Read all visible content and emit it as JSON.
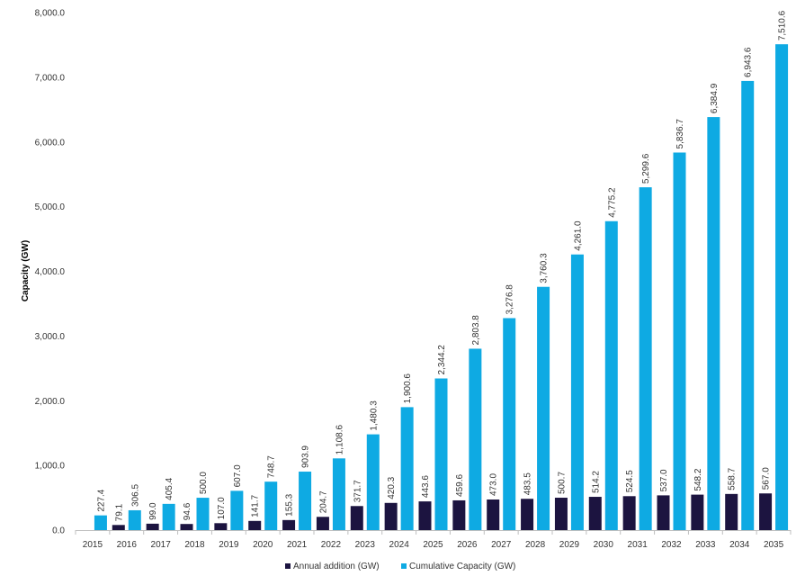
{
  "chart_data": {
    "type": "bar",
    "title": "",
    "xlabel": "",
    "ylabel": "Capacity (GW)",
    "ylim": [
      0,
      8000
    ],
    "yticks": [
      0,
      1000,
      2000,
      3000,
      4000,
      5000,
      6000,
      7000,
      8000
    ],
    "ytick_labels": [
      "0.0",
      "1,000.0",
      "2,000.0",
      "3,000.0",
      "4,000.0",
      "5,000.0",
      "6,000.0",
      "7,000.0",
      "8,000.0"
    ],
    "grid": false,
    "legend_position": "bottom",
    "categories": [
      "2015",
      "2016",
      "2017",
      "2018",
      "2019",
      "2020",
      "2021",
      "2022",
      "2023",
      "2024",
      "2025",
      "2026",
      "2027",
      "2028",
      "2029",
      "2030",
      "2031",
      "2032",
      "2033",
      "2034",
      "2035"
    ],
    "series": [
      {
        "name": "Annual addition (GW)",
        "color": "#1c1440",
        "values": [
          null,
          79.1,
          99.0,
          94.6,
          107.0,
          141.7,
          155.3,
          204.7,
          371.7,
          420.3,
          443.6,
          459.6,
          473.0,
          483.5,
          500.7,
          514.2,
          524.5,
          537.0,
          548.2,
          558.7,
          567.0
        ],
        "labels": [
          "",
          "79.1",
          "99.0",
          "94.6",
          "107.0",
          "141.7",
          "155.3",
          "204.7",
          "371.7",
          "420.3",
          "443.6",
          "459.6",
          "473.0",
          "483.5",
          "500.7",
          "514.2",
          "524.5",
          "537.0",
          "548.2",
          "558.7",
          "567.0"
        ]
      },
      {
        "name": "Cumulative Capacity (GW)",
        "color": "#0eaae3",
        "values": [
          227.4,
          306.5,
          405.4,
          500.0,
          607.0,
          748.7,
          903.9,
          1108.6,
          1480.3,
          1900.6,
          2344.2,
          2803.8,
          3276.8,
          3760.3,
          4261.0,
          4775.2,
          5299.6,
          5836.7,
          6384.9,
          6943.6,
          7510.6
        ],
        "labels": [
          "227.4",
          "306.5",
          "405.4",
          "500.0",
          "607.0",
          "748.7",
          "903.9",
          "1,108.6",
          "1,480.3",
          "1,900.6",
          "2,344.2",
          "2,803.8",
          "3,276.8",
          "3,760.3",
          "4,261.0",
          "4,775.2",
          "5,299.6",
          "5,836.7",
          "6,384.9",
          "6,943.6",
          "7,510.6"
        ]
      }
    ]
  }
}
